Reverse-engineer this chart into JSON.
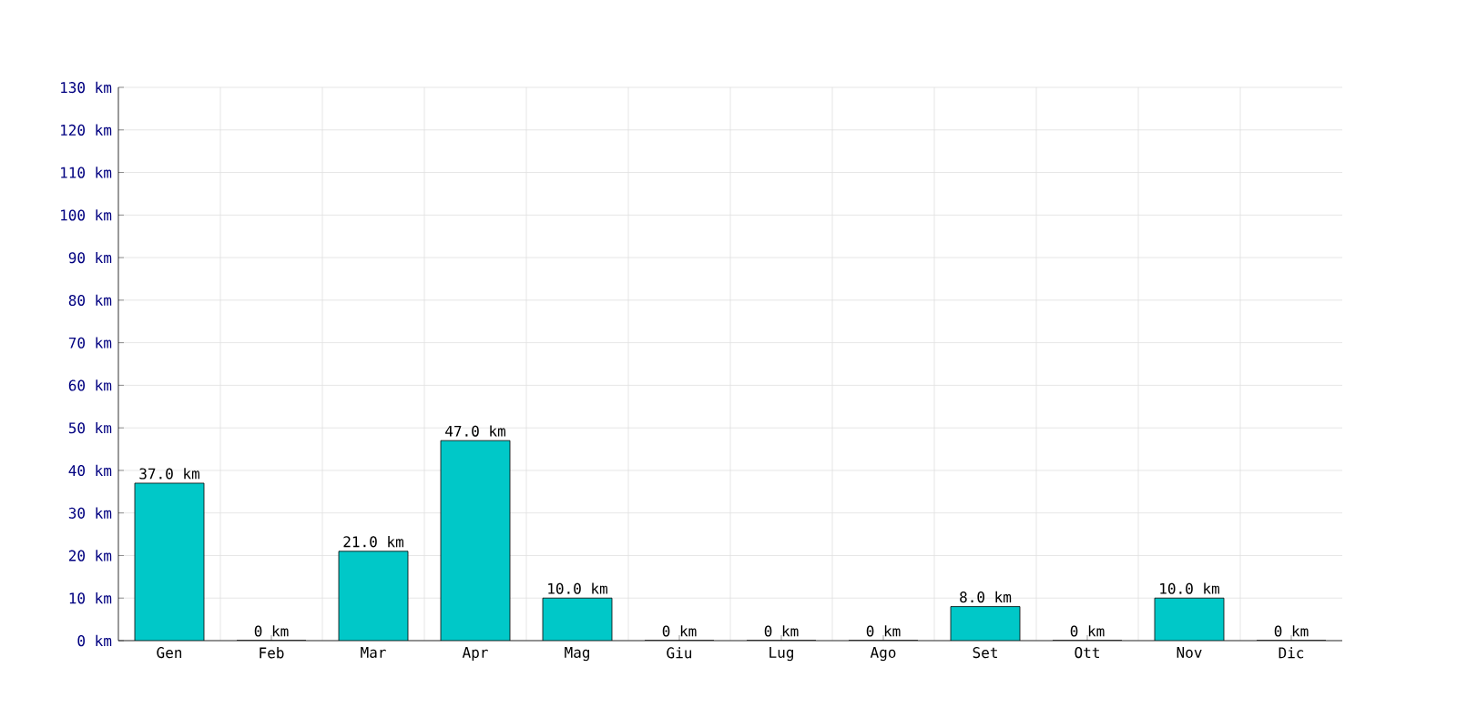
{
  "chart_data": {
    "type": "bar",
    "categories": [
      "Gen",
      "Feb",
      "Mar",
      "Apr",
      "Mag",
      "Giu",
      "Lug",
      "Ago",
      "Set",
      "Ott",
      "Nov",
      "Dic"
    ],
    "values": [
      37,
      0,
      21,
      47,
      10,
      0,
      0,
      0,
      8,
      0,
      10,
      0
    ],
    "value_labels": [
      "37.0 km",
      "0 km",
      "21.0 km",
      "47.0 km",
      "10.0 km",
      "0 km",
      "0 km",
      "0 km",
      "8.0 km",
      "0 km",
      "10.0 km",
      "0 km"
    ],
    "color": "#00c8c8",
    "ylim": [
      0,
      130
    ],
    "yticks": [
      {
        "value": 0,
        "label": "0 km"
      },
      {
        "value": 10,
        "label": "10 km"
      },
      {
        "value": 20,
        "label": "20 km"
      },
      {
        "value": 30,
        "label": "30 km"
      },
      {
        "value": 40,
        "label": "40 km"
      },
      {
        "value": 50,
        "label": "50 km"
      },
      {
        "value": 60,
        "label": "60 km"
      },
      {
        "value": 70,
        "label": "70 km"
      },
      {
        "value": 80,
        "label": "80 km"
      },
      {
        "value": 90,
        "label": "90 km"
      },
      {
        "value": 100,
        "label": "100 km"
      },
      {
        "value": 110,
        "label": "110 km"
      },
      {
        "value": 120,
        "label": "120 km"
      },
      {
        "value": 130,
        "label": "130 km"
      }
    ],
    "grid": true
  }
}
